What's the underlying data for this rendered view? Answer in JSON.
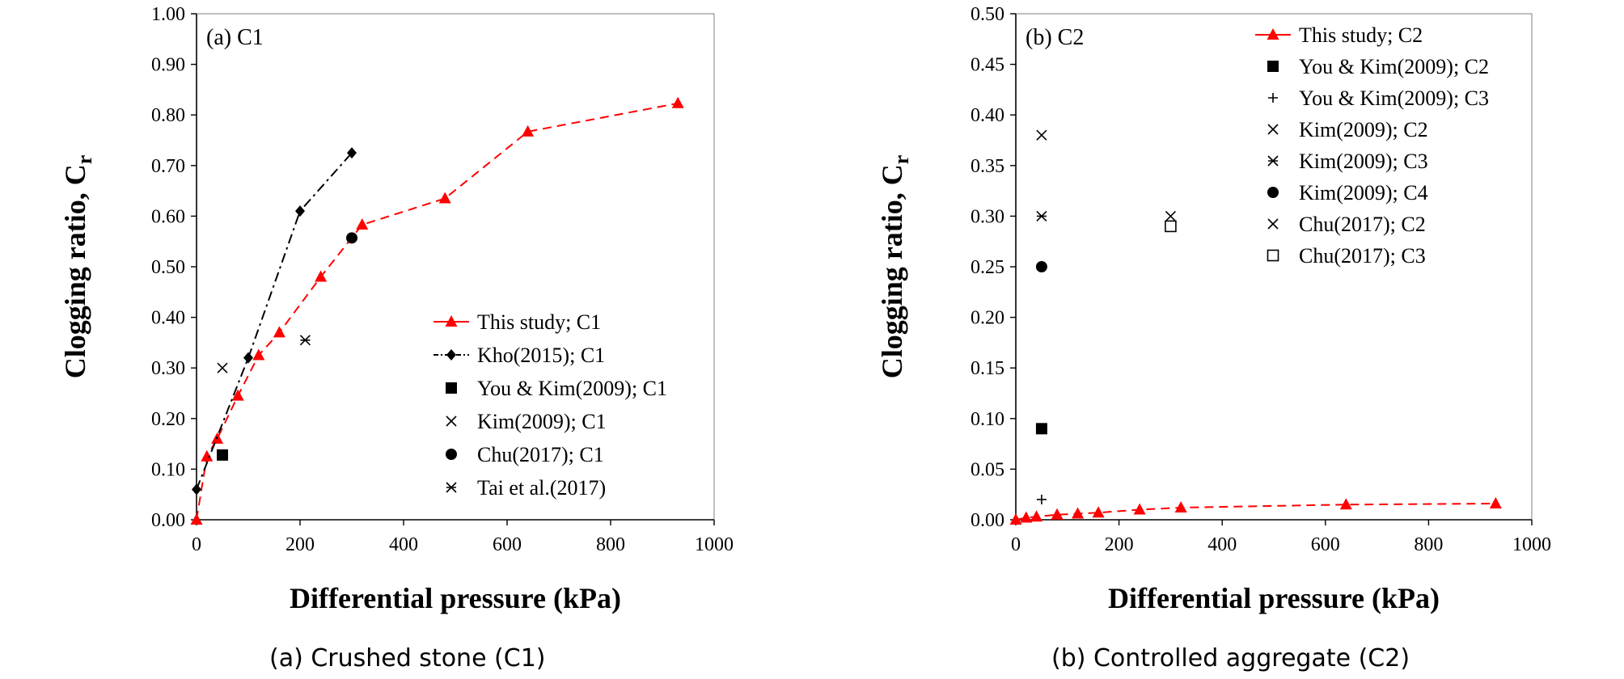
{
  "chart_data": [
    {
      "type": "scatter",
      "panel_label": "(a) C1",
      "caption": "(a) Crushed stone (C1)",
      "xlabel": "Differential pressure (kPa)",
      "ylabel_main": "Clogging ratio,  C",
      "ylabel_sub": "r",
      "xlim": [
        0,
        1000
      ],
      "ylim": [
        0,
        1.0
      ],
      "xticks": [
        "0",
        "200",
        "400",
        "600",
        "800",
        "1000"
      ],
      "yticks": [
        "0.00",
        "0.10",
        "0.20",
        "0.30",
        "0.40",
        "0.50",
        "0.60",
        "0.70",
        "0.80",
        "0.90",
        "1.00"
      ],
      "legend_position": "lower-right",
      "series": [
        {
          "name": "This study; C1",
          "marker": "triangle",
          "line": "dashed",
          "color": "#ff0000",
          "x": [
            0,
            20,
            40,
            80,
            120,
            160,
            240,
            320,
            480,
            640,
            930
          ],
          "y": [
            0.0,
            0.125,
            0.16,
            0.245,
            0.325,
            0.37,
            0.48,
            0.583,
            0.635,
            0.767,
            0.823
          ]
        },
        {
          "name": "Kho(2015); C1",
          "marker": "diamond",
          "line": "dashdot",
          "color": "#000000",
          "x": [
            0,
            100,
            200,
            300
          ],
          "y": [
            0.06,
            0.32,
            0.61,
            0.725
          ]
        },
        {
          "name": "You & Kim(2009); C1",
          "marker": "square",
          "line": "none",
          "color": "#000000",
          "x": [
            50
          ],
          "y": [
            0.128
          ]
        },
        {
          "name": "Kim(2009); C1",
          "marker": "x",
          "line": "none",
          "color": "#000000",
          "x": [
            50
          ],
          "y": [
            0.3
          ]
        },
        {
          "name": "Chu(2017); C1",
          "marker": "circle",
          "line": "none",
          "color": "#000000",
          "x": [
            300
          ],
          "y": [
            0.557
          ]
        },
        {
          "name": "Tai et al.(2017)",
          "marker": "asterisk",
          "line": "none",
          "color": "#000000",
          "x": [
            210
          ],
          "y": [
            0.355
          ]
        }
      ]
    },
    {
      "type": "scatter",
      "panel_label": "(b) C2",
      "caption": "(b) Controlled aggregate (C2)",
      "xlabel": "Differential pressure (kPa)",
      "ylabel_main": "Clogging ratio,  C",
      "ylabel_sub": "r",
      "xlim": [
        0,
        1000
      ],
      "ylim": [
        0,
        0.5
      ],
      "xticks": [
        "0",
        "200",
        "400",
        "600",
        "800",
        "1000"
      ],
      "yticks": [
        "0.00",
        "0.05",
        "0.10",
        "0.15",
        "0.20",
        "0.25",
        "0.30",
        "0.35",
        "0.40",
        "0.45",
        "0.50"
      ],
      "legend_position": "upper-right",
      "series": [
        {
          "name": "This study; C2",
          "marker": "triangle",
          "line": "dashed",
          "color": "#ff0000",
          "x": [
            0,
            20,
            40,
            80,
            120,
            160,
            240,
            320,
            640,
            930
          ],
          "y": [
            0.0,
            0.002,
            0.003,
            0.005,
            0.006,
            0.007,
            0.01,
            0.012,
            0.015,
            0.016
          ]
        },
        {
          "name": "You & Kim(2009); C2",
          "marker": "square",
          "line": "none",
          "color": "#000000",
          "x": [
            50
          ],
          "y": [
            0.09
          ]
        },
        {
          "name": "You & Kim(2009); C3",
          "marker": "plus",
          "line": "none",
          "color": "#000000",
          "x": [
            50
          ],
          "y": [
            0.02
          ]
        },
        {
          "name": "Kim(2009); C2",
          "marker": "x",
          "line": "none",
          "color": "#000000",
          "x": [
            50
          ],
          "y": [
            0.38
          ]
        },
        {
          "name": "Kim(2009); C3",
          "marker": "asterisk",
          "line": "none",
          "color": "#000000",
          "x": [
            50
          ],
          "y": [
            0.3
          ]
        },
        {
          "name": "Kim(2009); C4",
          "marker": "circle",
          "line": "none",
          "color": "#000000",
          "x": [
            50
          ],
          "y": [
            0.25
          ]
        },
        {
          "name": "Chu(2017); C2",
          "marker": "x",
          "line": "none",
          "color": "#000000",
          "x": [
            300
          ],
          "y": [
            0.3
          ]
        },
        {
          "name": "Chu(2017); C3",
          "marker": "open-square",
          "line": "none",
          "color": "#000000",
          "x": [
            300
          ],
          "y": [
            0.29
          ]
        }
      ]
    }
  ]
}
